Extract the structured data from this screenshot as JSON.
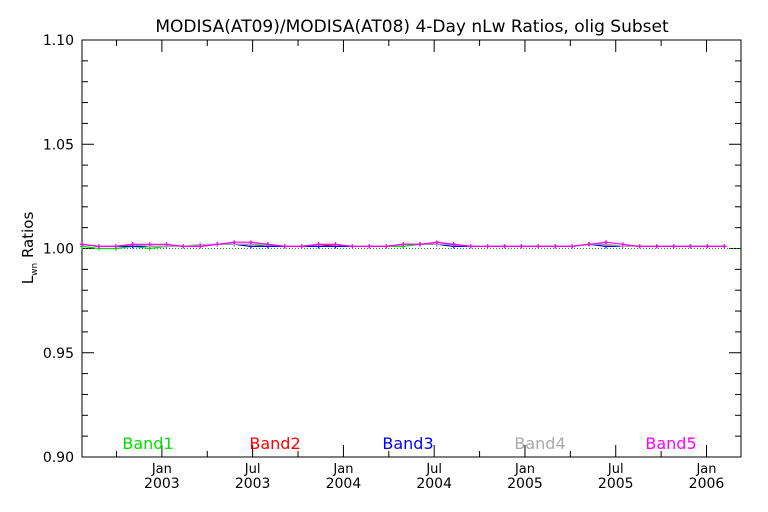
{
  "chart_data": {
    "type": "line",
    "title": "MODISA(AT09)/MODISA(AT08) 4-Day nLw Ratios, olig Subset",
    "ylabel_main": "L",
    "ylabel_sub": "wn",
    "ylabel_rest": " Ratios",
    "ylim": [
      0.9,
      1.1
    ],
    "yticks": [
      0.9,
      0.95,
      1.0,
      1.05,
      1.1
    ],
    "ytick_labels": [
      "0.90",
      "0.95",
      "1.00",
      "1.05",
      "1.10"
    ],
    "xlim": [
      2002.56,
      2006.19
    ],
    "xticks": [
      {
        "x": 2003.0,
        "month": "Jan",
        "year": "2003"
      },
      {
        "x": 2003.5,
        "month": "Jul",
        "year": "2003"
      },
      {
        "x": 2004.0,
        "month": "Jan",
        "year": "2004"
      },
      {
        "x": 2004.5,
        "month": "Jul",
        "year": "2004"
      },
      {
        "x": 2005.0,
        "month": "Jan",
        "year": "2005"
      },
      {
        "x": 2005.5,
        "month": "Jul",
        "year": "2005"
      },
      {
        "x": 2006.0,
        "month": "Jan",
        "year": "2006"
      }
    ],
    "reference_line": 1.0,
    "series": [
      {
        "name": "Band1",
        "color": "#00e000",
        "y": [
          1.001,
          1.0,
          1.0,
          1.001,
          1.0,
          1.001,
          1.001,
          1.001,
          1.002,
          1.002,
          1.002,
          1.001,
          1.001,
          1.001,
          1.002,
          1.001,
          1.001,
          1.001,
          1.001,
          1.001,
          1.002,
          1.002,
          1.002,
          1.001,
          1.001,
          1.001,
          1.001,
          1.001,
          1.001,
          1.001,
          1.002,
          1.002,
          1.001,
          1.001,
          1.001,
          1.001,
          1.001,
          1.001,
          1.001
        ]
      },
      {
        "name": "Band2",
        "color": "#ff0000",
        "y": [
          1.002,
          1.001,
          1.001,
          1.002,
          1.001,
          1.001,
          1.001,
          1.001,
          1.002,
          1.002,
          1.002,
          1.002,
          1.001,
          1.001,
          1.002,
          1.001,
          1.001,
          1.001,
          1.001,
          1.002,
          1.002,
          1.002,
          1.002,
          1.001,
          1.001,
          1.001,
          1.001,
          1.001,
          1.001,
          1.001,
          1.002,
          1.002,
          1.001,
          1.001,
          1.001,
          1.001,
          1.001,
          1.001,
          1.001
        ]
      },
      {
        "name": "Band3",
        "color": "#0000ff",
        "y": [
          1.002,
          1.001,
          1.001,
          1.001,
          1.001,
          1.001,
          1.001,
          1.001,
          1.002,
          1.002,
          1.001,
          1.001,
          1.001,
          1.001,
          1.001,
          1.001,
          1.001,
          1.001,
          1.001,
          1.002,
          1.002,
          1.002,
          1.001,
          1.001,
          1.001,
          1.001,
          1.001,
          1.001,
          1.001,
          1.001,
          1.002,
          1.001,
          1.001,
          1.001,
          1.001,
          1.001,
          1.001,
          1.001,
          1.001
        ]
      },
      {
        "name": "Band4",
        "color": "#aaaaaa",
        "y": [
          1.002,
          1.001,
          1.001,
          1.002,
          1.001,
          1.001,
          1.001,
          1.002,
          1.002,
          1.002,
          1.002,
          1.002,
          1.001,
          1.001,
          1.002,
          1.002,
          1.001,
          1.001,
          1.001,
          1.002,
          1.002,
          1.002,
          1.002,
          1.001,
          1.001,
          1.001,
          1.001,
          1.001,
          1.001,
          1.001,
          1.002,
          1.002,
          1.001,
          1.001,
          1.001,
          1.001,
          1.001,
          1.001,
          1.001
        ]
      },
      {
        "name": "Band5",
        "color": "#ff00ff",
        "y": [
          1.002,
          1.001,
          1.001,
          1.002,
          1.002,
          1.002,
          1.001,
          1.001,
          1.002,
          1.003,
          1.003,
          1.002,
          1.001,
          1.001,
          1.002,
          1.002,
          1.001,
          1.001,
          1.001,
          1.002,
          1.002,
          1.003,
          1.002,
          1.001,
          1.001,
          1.001,
          1.001,
          1.001,
          1.001,
          1.001,
          1.002,
          1.003,
          1.002,
          1.001,
          1.001,
          1.001,
          1.001,
          1.001,
          1.001
        ]
      }
    ],
    "x_start": 2002.56,
    "x_step": 0.0931
  }
}
